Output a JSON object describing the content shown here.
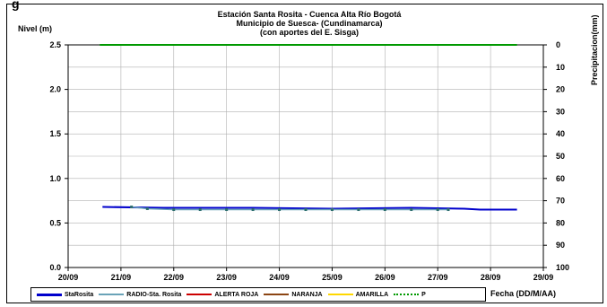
{
  "caption": "g",
  "chart_data": {
    "type": "line",
    "title": [
      "Estación Santa Rosita - Cuenca Alta Río Bogotá",
      "Municipio de Suesca- (Cundinamarca)",
      "(con aportes del  E. Sisga)"
    ],
    "ylabel": "Nivel (m)",
    "y2label": "Precipitacion(mm)",
    "xlabel": "Fecha (DD/M/AA)",
    "x_ticks": [
      "20/09",
      "21/09",
      "22/09",
      "23/09",
      "24/09",
      "25/09",
      "26/09",
      "27/09",
      "28/09",
      "29/09"
    ],
    "y_ticks": [
      "0.0",
      "0.5",
      "1.0",
      "1.5",
      "2.0",
      "2.5"
    ],
    "y2_ticks": [
      "0",
      "10",
      "20",
      "30",
      "40",
      "50",
      "60",
      "70",
      "80",
      "90",
      "100"
    ],
    "ylim": [
      0,
      2.5
    ],
    "y2lim": [
      0,
      100
    ],
    "xlim": [
      0,
      9
    ],
    "grid": true,
    "legend_position": "bottom",
    "series": [
      {
        "name": "StaRosita",
        "color": "#0000cc",
        "style": "line",
        "x": [
          0.65,
          1.8,
          3.5,
          5.0,
          6.5,
          7.5,
          7.8,
          8.5
        ],
        "y": [
          0.68,
          0.67,
          0.67,
          0.66,
          0.67,
          0.66,
          0.65,
          0.65
        ]
      },
      {
        "name": "RADIO-Sta. Rosita",
        "color": "#6aa3b8",
        "style": "line-dots",
        "x": [
          1.2,
          1.5,
          2.0,
          2.5,
          3.0,
          3.5,
          4.0,
          4.5,
          5.0,
          5.5,
          6.0,
          6.5,
          7.0,
          7.2
        ],
        "y": [
          0.68,
          0.66,
          0.65,
          0.65,
          0.65,
          0.65,
          0.65,
          0.65,
          0.65,
          0.65,
          0.65,
          0.65,
          0.65,
          0.65
        ]
      },
      {
        "name": "ALERTA ROJA",
        "color": "#cc0000",
        "style": "line",
        "x": [],
        "y": []
      },
      {
        "name": "NARANJA",
        "color": "#8b4513",
        "style": "line",
        "x": [],
        "y": []
      },
      {
        "name": "AMARILLA",
        "color": "#ffd700",
        "style": "line",
        "x": [],
        "y": []
      },
      {
        "name": "P",
        "color": "#009900",
        "style": "dots",
        "axis": "y2",
        "x": [
          0.6,
          8.5
        ],
        "y": [
          0,
          0
        ]
      }
    ]
  }
}
